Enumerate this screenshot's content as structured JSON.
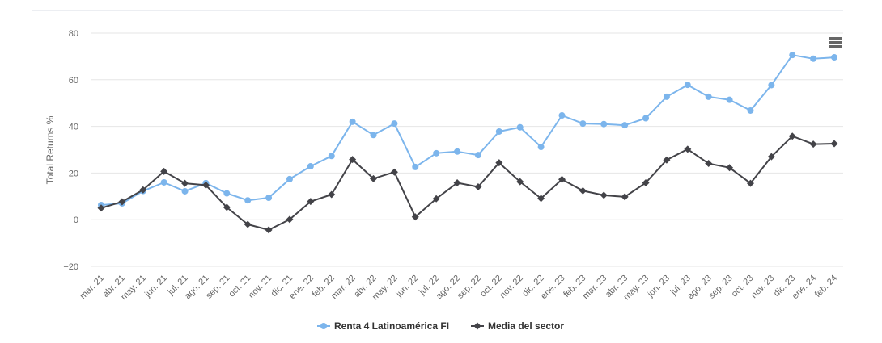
{
  "menu_icon": "hamburger-menu-icon",
  "chart_data": {
    "type": "line",
    "categories": [
      "mar. 21",
      "abr. 21",
      "may. 21",
      "jun. 21",
      "jul. 21",
      "ago. 21",
      "sep. 21",
      "oct. 21",
      "nov. 21",
      "dic. 21",
      "ene. 22",
      "feb. 22",
      "mar. 22",
      "abr. 22",
      "may. 22",
      "jun. 22",
      "jul. 22",
      "ago. 22",
      "sep. 22",
      "oct. 22",
      "nov. 22",
      "dic. 22",
      "ene. 23",
      "feb. 23",
      "mar. 23",
      "abr. 23",
      "may. 23",
      "jun. 23",
      "jul. 23",
      "ago. 23",
      "sep. 23",
      "oct. 23",
      "nov. 23",
      "dic. 23",
      "ene. 24",
      "feb. 24"
    ],
    "ylabel": "Total Returns %",
    "ylim": [
      -20,
      80
    ],
    "yticks": [
      -20,
      0,
      20,
      40,
      60,
      80
    ],
    "ytick_labels": [
      "−20",
      "0",
      "20",
      "40",
      "60",
      "80"
    ],
    "grid": true,
    "legend_position": "bottom-center",
    "series": [
      {
        "name": "Renta 4 Latinoamérica FI",
        "color": "#7cb5ec",
        "marker": "circle",
        "values": [
          6.3,
          7.0,
          12.3,
          16.0,
          12.2,
          15.7,
          11.3,
          8.3,
          9.4,
          17.4,
          22.9,
          27.3,
          42.0,
          36.3,
          41.2,
          22.6,
          28.5,
          29.2,
          27.7,
          37.8,
          39.6,
          31.2,
          44.7,
          41.2,
          41.0,
          40.5,
          43.5,
          52.7,
          57.8,
          52.7,
          51.4,
          46.8,
          57.7,
          70.6,
          69.0,
          69.6
        ]
      },
      {
        "name": "Media del sector",
        "color": "#434348",
        "marker": "diamond",
        "values": [
          5.0,
          7.7,
          12.8,
          20.7,
          15.6,
          14.8,
          5.3,
          -2.0,
          -4.4,
          0.1,
          7.8,
          10.8,
          25.8,
          17.6,
          20.4,
          1.2,
          9.0,
          15.8,
          14.1,
          24.4,
          16.3,
          9.1,
          17.3,
          12.4,
          10.5,
          9.8,
          15.8,
          25.6,
          30.2,
          24.1,
          22.3,
          15.6,
          27.0,
          35.8,
          32.4,
          32.6
        ]
      }
    ]
  }
}
